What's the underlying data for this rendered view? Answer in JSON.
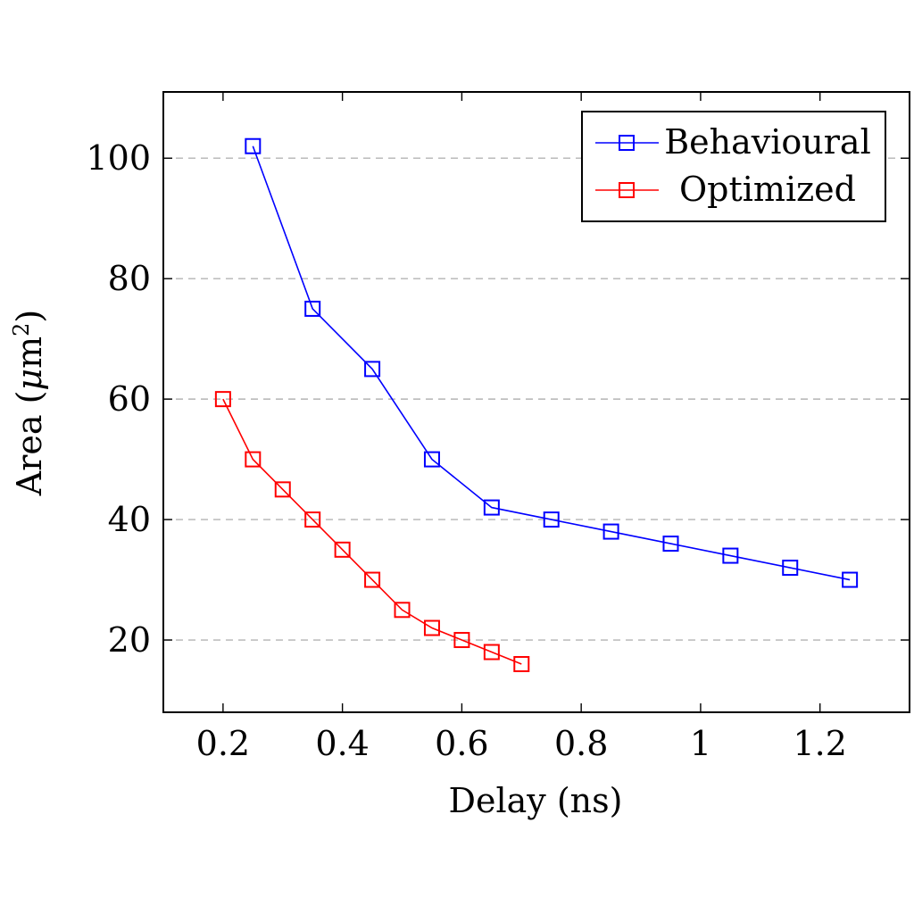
{
  "chart_data": {
    "type": "line",
    "title": "",
    "xlabel": "Delay (ns)",
    "ylabel_main": "Area (",
    "ylabel_mu": "μ",
    "ylabel_unit": "m",
    "ylabel_sup": "2",
    "ylabel_close": ")",
    "xlim": [
      0.1,
      1.35
    ],
    "ylim": [
      8,
      111
    ],
    "x_ticks": [
      0.2,
      0.4,
      0.6,
      0.8,
      1.0,
      1.2
    ],
    "x_tick_labels": [
      "0.2",
      "0.4",
      "0.6",
      "0.8",
      "1",
      "1.2"
    ],
    "y_ticks": [
      20,
      40,
      60,
      80,
      100
    ],
    "y_tick_labels": [
      "20",
      "40",
      "60",
      "80",
      "100"
    ],
    "grid": "horizontal dashed",
    "legend_position": "top-right",
    "marker": "square",
    "series": [
      {
        "name": "Behavioural",
        "color": "#0000ff",
        "x": [
          0.25,
          0.35,
          0.45,
          0.55,
          0.65,
          0.75,
          0.85,
          0.95,
          1.05,
          1.15,
          1.25
        ],
        "y": [
          102,
          75,
          65,
          50,
          42,
          40,
          38,
          36,
          34,
          32,
          30
        ]
      },
      {
        "name": "Optimized",
        "color": "#ff0000",
        "x": [
          0.2,
          0.25,
          0.3,
          0.35,
          0.4,
          0.45,
          0.5,
          0.55,
          0.6,
          0.65,
          0.7
        ],
        "y": [
          60,
          50,
          45,
          40,
          35,
          30,
          25,
          22,
          20,
          18,
          16
        ]
      }
    ]
  }
}
